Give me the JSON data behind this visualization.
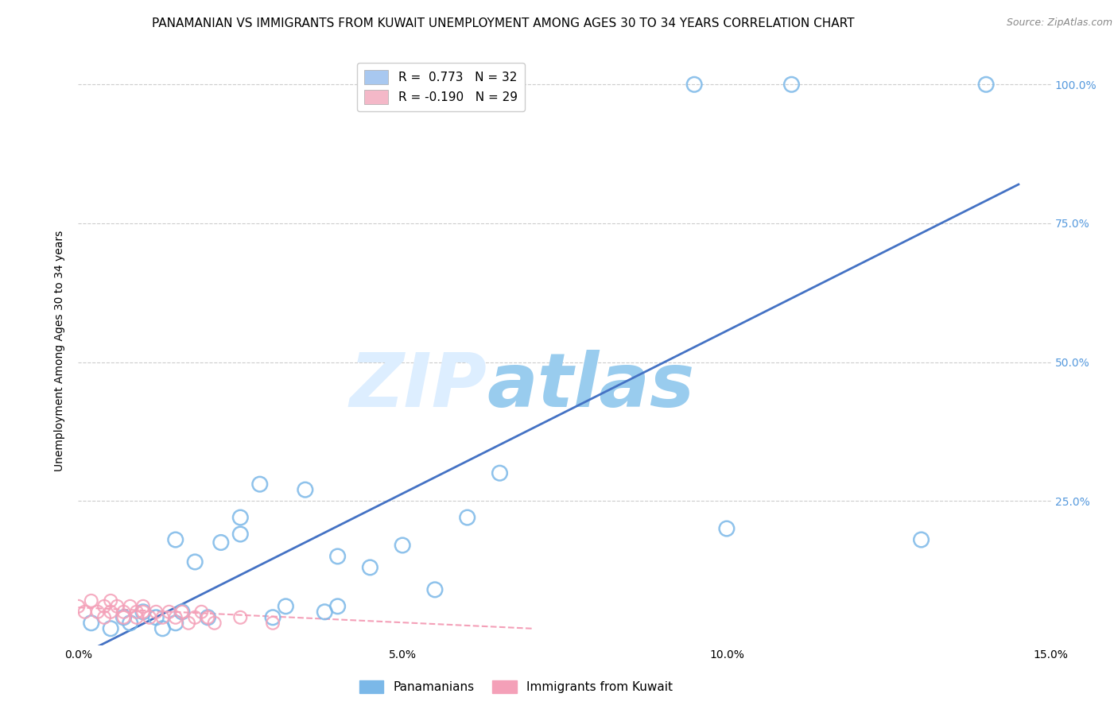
{
  "title": "PANAMANIAN VS IMMIGRANTS FROM KUWAIT UNEMPLOYMENT AMONG AGES 30 TO 34 YEARS CORRELATION CHART",
  "source": "Source: ZipAtlas.com",
  "ylabel": "Unemployment Among Ages 30 to 34 years",
  "xlim": [
    0.0,
    0.15
  ],
  "ylim": [
    -0.01,
    1.05
  ],
  "xtick_labels": [
    "0.0%",
    "5.0%",
    "10.0%",
    "15.0%"
  ],
  "xtick_values": [
    0.0,
    0.05,
    0.1,
    0.15
  ],
  "ytick_labels_right": [
    "25.0%",
    "50.0%",
    "75.0%",
    "100.0%"
  ],
  "ytick_values_right": [
    0.25,
    0.5,
    0.75,
    1.0
  ],
  "legend_entries": [
    {
      "label": "R =  0.773   N = 32",
      "color": "#a8c8f0"
    },
    {
      "label": "R = -0.190   N = 29",
      "color": "#f4b8c8"
    }
  ],
  "blue_scatter_x": [
    0.002,
    0.005,
    0.007,
    0.008,
    0.01,
    0.012,
    0.013,
    0.015,
    0.015,
    0.016,
    0.018,
    0.02,
    0.022,
    0.025,
    0.025,
    0.028,
    0.03,
    0.032,
    0.035,
    0.038,
    0.04,
    0.04,
    0.045,
    0.05,
    0.055,
    0.06,
    0.065,
    0.095,
    0.1,
    0.11,
    0.13,
    0.14
  ],
  "blue_scatter_y": [
    0.03,
    0.02,
    0.04,
    0.03,
    0.05,
    0.04,
    0.02,
    0.03,
    0.18,
    0.05,
    0.14,
    0.04,
    0.175,
    0.19,
    0.22,
    0.28,
    0.04,
    0.06,
    0.27,
    0.05,
    0.06,
    0.15,
    0.13,
    0.17,
    0.09,
    0.22,
    0.3,
    1.0,
    0.2,
    1.0,
    0.18,
    1.0
  ],
  "pink_scatter_x": [
    0.0,
    0.001,
    0.002,
    0.003,
    0.004,
    0.004,
    0.005,
    0.005,
    0.006,
    0.007,
    0.007,
    0.008,
    0.009,
    0.009,
    0.01,
    0.01,
    0.011,
    0.012,
    0.013,
    0.014,
    0.015,
    0.016,
    0.017,
    0.018,
    0.019,
    0.02,
    0.021,
    0.025,
    0.03
  ],
  "pink_scatter_y": [
    0.06,
    0.05,
    0.07,
    0.05,
    0.06,
    0.04,
    0.07,
    0.05,
    0.06,
    0.05,
    0.04,
    0.06,
    0.05,
    0.04,
    0.05,
    0.06,
    0.04,
    0.05,
    0.04,
    0.05,
    0.04,
    0.05,
    0.03,
    0.04,
    0.05,
    0.04,
    0.03,
    0.04,
    0.03
  ],
  "blue_line_x": [
    0.0,
    0.145
  ],
  "blue_line_y": [
    -0.03,
    0.82
  ],
  "pink_line_x": [
    0.0,
    0.07
  ],
  "pink_line_y": [
    0.058,
    0.02
  ],
  "watermark_zip": "ZIP",
  "watermark_atlas": "atlas",
  "watermark_color_zip": "#ddeeff",
  "watermark_color_atlas": "#99ccee",
  "watermark_fontsize": 68,
  "background_color": "#ffffff",
  "grid_color": "#cccccc",
  "blue_scatter_color": "#7bb8e8",
  "pink_scatter_color": "#f4a0b8",
  "blue_line_color": "#4472c4",
  "pink_line_color": "#f4a0b8",
  "title_fontsize": 11,
  "axis_label_fontsize": 10,
  "tick_fontsize": 10,
  "right_tick_color": "#5599dd"
}
